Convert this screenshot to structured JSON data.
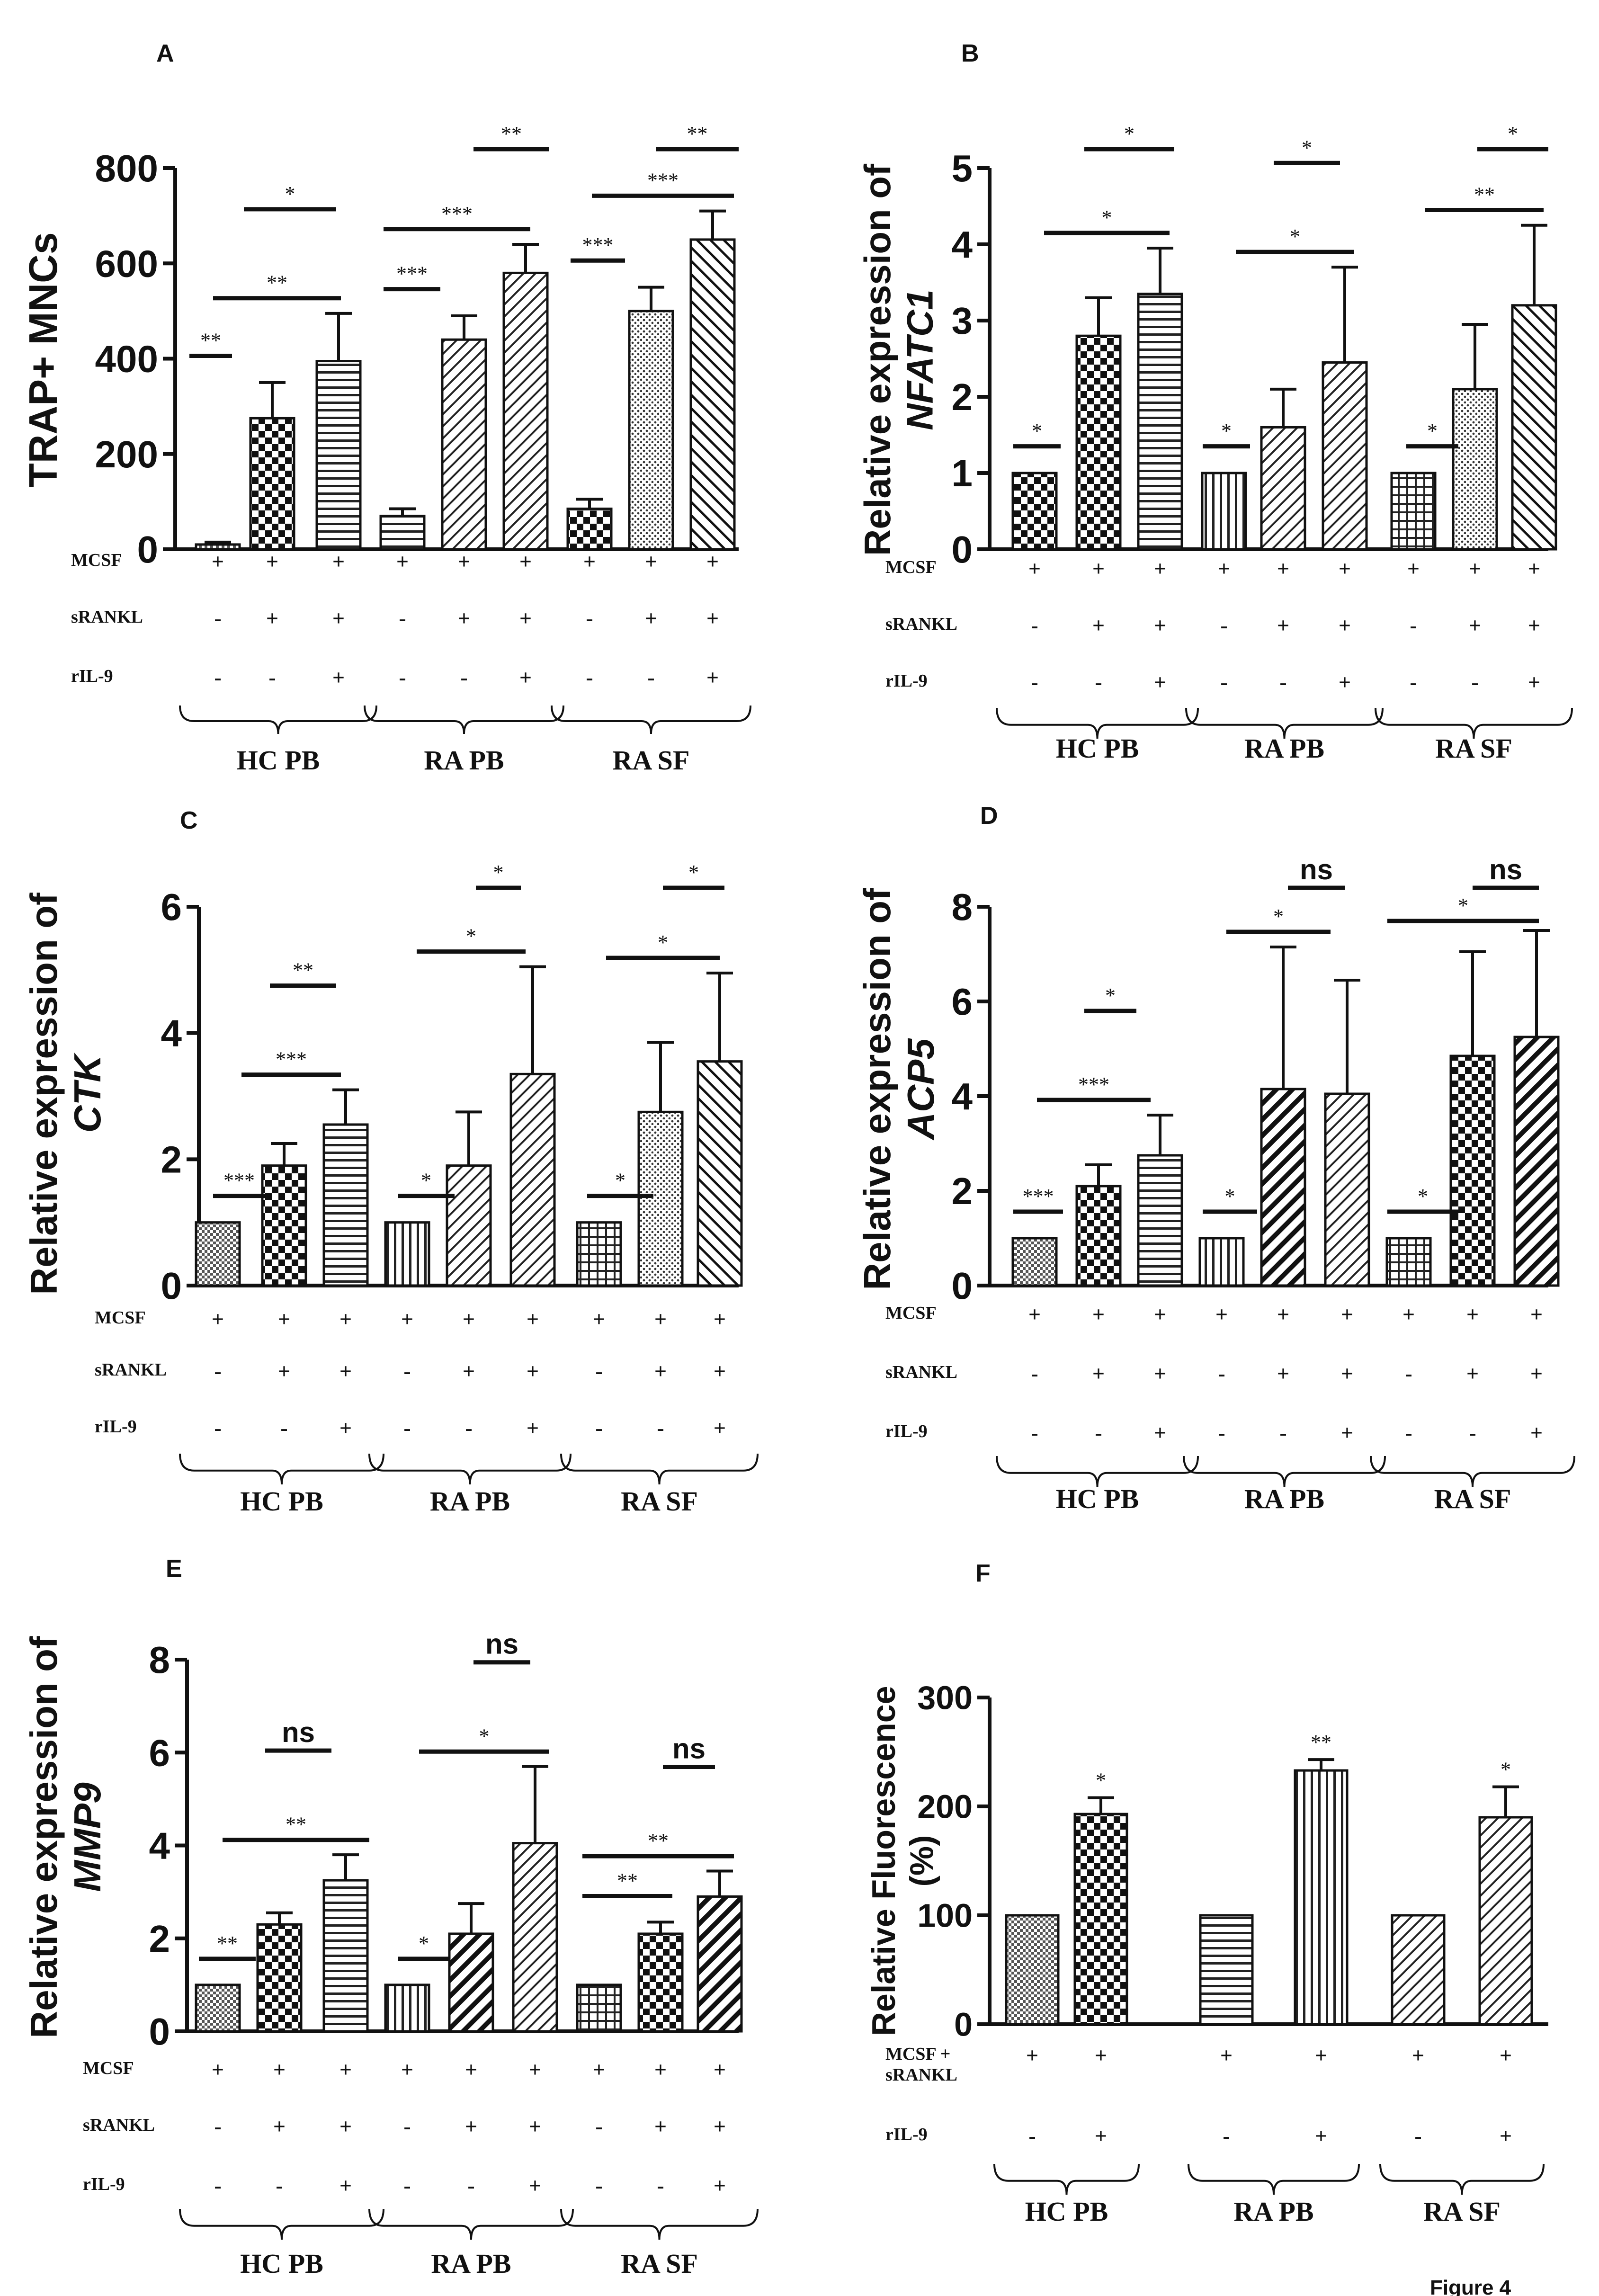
{
  "figure_label": "Figure 4",
  "condition_rows": {
    "mcsf": "MCSF",
    "srankl": "sRANKL",
    "ril9": "rIL-9",
    "mcsf_srankl": [
      "MCSF +",
      "sRANKL"
    ],
    "values_6": {
      "mcsf": [
        "+",
        "+",
        "+"
      ],
      "srankl": [
        "-",
        "+",
        "+"
      ],
      "ril9": [
        "-",
        "-",
        "+"
      ]
    },
    "values_f": {
      "mcsf_srankl": [
        "+",
        "+"
      ],
      "ril9": [
        "-",
        "+"
      ]
    }
  },
  "groups": [
    "HC PB",
    "RA PB",
    "RA SF"
  ],
  "chart_data": [
    {
      "panel": "A",
      "type": "bar",
      "ylabel": [
        "TRAP+ MNCs"
      ],
      "ylim": [
        0,
        800
      ],
      "yticks": [
        "0",
        "200",
        "400",
        "600",
        "800"
      ],
      "groups": [
        "HC PB",
        "RA PB",
        "RA SF"
      ],
      "series": [
        "MCSF",
        "MCSF + sRANKL",
        "MCSF + sRANKL + rIL-9"
      ],
      "values": [
        [
          10,
          275,
          395
        ],
        [
          70,
          440,
          580
        ],
        [
          85,
          500,
          650
        ]
      ],
      "errors": [
        [
          5,
          75,
          100
        ],
        [
          15,
          50,
          60
        ],
        [
          20,
          50,
          60
        ]
      ],
      "significance": [
        {
          "from": [
            0,
            0
          ],
          "to": [
            0,
            1
          ],
          "label": "**"
        },
        {
          "from": [
            0,
            1
          ],
          "to": [
            0,
            2
          ],
          "label": "*"
        },
        {
          "from": [
            0,
            0
          ],
          "to": [
            0,
            2
          ],
          "label": "**"
        },
        {
          "from": [
            1,
            0
          ],
          "to": [
            1,
            1
          ],
          "label": "***"
        },
        {
          "from": [
            1,
            1
          ],
          "to": [
            1,
            2
          ],
          "label": "**"
        },
        {
          "from": [
            1,
            0
          ],
          "to": [
            1,
            2
          ],
          "label": "***"
        },
        {
          "from": [
            2,
            0
          ],
          "to": [
            2,
            1
          ],
          "label": "***"
        },
        {
          "from": [
            2,
            1
          ],
          "to": [
            2,
            2
          ],
          "label": "**"
        },
        {
          "from": [
            2,
            0
          ],
          "to": [
            2,
            2
          ],
          "label": "***"
        }
      ]
    },
    {
      "panel": "B",
      "type": "bar",
      "ylabel": [
        "Relative expression of",
        "NFATC1"
      ],
      "ylim": [
        0,
        5
      ],
      "yticks": [
        "0",
        "1",
        "2",
        "3",
        "4",
        "5"
      ],
      "groups": [
        "HC PB",
        "RA PB",
        "RA SF"
      ],
      "series": [
        "MCSF",
        "MCSF + sRANKL",
        "MCSF + sRANKL + rIL-9"
      ],
      "values": [
        [
          1,
          2.8,
          3.35
        ],
        [
          1,
          1.6,
          2.45
        ],
        [
          1,
          2.1,
          3.2
        ]
      ],
      "errors": [
        [
          0,
          0.5,
          0.6
        ],
        [
          0,
          0.5,
          1.25
        ],
        [
          0,
          0.85,
          1.05
        ]
      ],
      "significance": [
        {
          "from": [
            0,
            0
          ],
          "to": [
            0,
            0
          ],
          "label": "*"
        },
        {
          "from": [
            0,
            1
          ],
          "to": [
            0,
            2
          ],
          "label": "*"
        },
        {
          "from": [
            0,
            0
          ],
          "to": [
            0,
            2
          ],
          "label": "*"
        },
        {
          "from": [
            1,
            0
          ],
          "to": [
            1,
            0
          ],
          "label": "*"
        },
        {
          "from": [
            1,
            1
          ],
          "to": [
            1,
            2
          ],
          "label": "*"
        },
        {
          "from": [
            1,
            0
          ],
          "to": [
            1,
            2
          ],
          "label": "*"
        },
        {
          "from": [
            2,
            0
          ],
          "to": [
            2,
            0
          ],
          "label": "*"
        },
        {
          "from": [
            2,
            1
          ],
          "to": [
            2,
            2
          ],
          "label": "*"
        },
        {
          "from": [
            2,
            0
          ],
          "to": [
            2,
            2
          ],
          "label": "**"
        }
      ]
    },
    {
      "panel": "C",
      "type": "bar",
      "ylabel": [
        "Relative expression of",
        "CTK"
      ],
      "ylim": [
        0,
        6
      ],
      "yticks": [
        "0",
        "2",
        "4",
        "6"
      ],
      "groups": [
        "HC PB",
        "RA PB",
        "RA SF"
      ],
      "series": [
        "MCSF",
        "MCSF + sRANKL",
        "MCSF + sRANKL + rIL-9"
      ],
      "values": [
        [
          1,
          1.9,
          2.55
        ],
        [
          1,
          1.9,
          3.35
        ],
        [
          1,
          2.75,
          3.55
        ]
      ],
      "errors": [
        [
          0,
          0.35,
          0.55
        ],
        [
          0,
          0.85,
          1.7
        ],
        [
          0,
          1.1,
          1.4
        ]
      ],
      "significance": [
        {
          "from": [
            0,
            0
          ],
          "to": [
            0,
            0
          ],
          "label": "***"
        },
        {
          "from": [
            0,
            1
          ],
          "to": [
            0,
            2
          ],
          "label": "**"
        },
        {
          "from": [
            0,
            0
          ],
          "to": [
            0,
            2
          ],
          "label": "***"
        },
        {
          "from": [
            1,
            0
          ],
          "to": [
            1,
            0
          ],
          "label": "*"
        },
        {
          "from": [
            1,
            1
          ],
          "to": [
            1,
            2
          ],
          "label": "*"
        },
        {
          "from": [
            1,
            0
          ],
          "to": [
            1,
            2
          ],
          "label": "*"
        },
        {
          "from": [
            2,
            0
          ],
          "to": [
            2,
            0
          ],
          "label": "*"
        },
        {
          "from": [
            2,
            1
          ],
          "to": [
            2,
            2
          ],
          "label": "*"
        },
        {
          "from": [
            2,
            0
          ],
          "to": [
            2,
            2
          ],
          "label": "*"
        }
      ]
    },
    {
      "panel": "D",
      "type": "bar",
      "ylabel": [
        "Relative expression of",
        "ACP5"
      ],
      "ylim": [
        0,
        8
      ],
      "yticks": [
        "0",
        "2",
        "4",
        "6",
        "8"
      ],
      "groups": [
        "HC PB",
        "RA PB",
        "RA SF"
      ],
      "series": [
        "MCSF",
        "MCSF + sRANKL",
        "MCSF + sRANKL + rIL-9"
      ],
      "values": [
        [
          1,
          2.1,
          2.75
        ],
        [
          1,
          4.15,
          4.05
        ],
        [
          1,
          4.85,
          5.25
        ]
      ],
      "errors": [
        [
          0,
          0.45,
          0.85
        ],
        [
          0,
          3.0,
          2.4
        ],
        [
          0,
          2.2,
          2.25
        ]
      ],
      "significance": [
        {
          "from": [
            0,
            0
          ],
          "to": [
            0,
            0
          ],
          "label": "***"
        },
        {
          "from": [
            0,
            1
          ],
          "to": [
            0,
            2
          ],
          "label": "*"
        },
        {
          "from": [
            0,
            0
          ],
          "to": [
            0,
            2
          ],
          "label": "***"
        },
        {
          "from": [
            1,
            0
          ],
          "to": [
            1,
            0
          ],
          "label": "*"
        },
        {
          "from": [
            1,
            1
          ],
          "to": [
            1,
            2
          ],
          "label": "ns"
        },
        {
          "from": [
            1,
            0
          ],
          "to": [
            1,
            2
          ],
          "label": "*"
        },
        {
          "from": [
            2,
            0
          ],
          "to": [
            2,
            0
          ],
          "label": "*"
        },
        {
          "from": [
            2,
            1
          ],
          "to": [
            2,
            2
          ],
          "label": "ns"
        },
        {
          "from": [
            2,
            0
          ],
          "to": [
            2,
            2
          ],
          "label": "*"
        }
      ]
    },
    {
      "panel": "E",
      "type": "bar",
      "ylabel": [
        "Relative expression of",
        "MMP9"
      ],
      "ylim": [
        0,
        8
      ],
      "yticks": [
        "0",
        "2",
        "4",
        "6",
        "8"
      ],
      "groups": [
        "HC PB",
        "RA PB",
        "RA SF"
      ],
      "series": [
        "MCSF",
        "MCSF + sRANKL",
        "MCSF + sRANKL + rIL-9"
      ],
      "values": [
        [
          1,
          2.3,
          3.25
        ],
        [
          1,
          2.1,
          4.05
        ],
        [
          1,
          2.1,
          2.9
        ]
      ],
      "errors": [
        [
          0,
          0.25,
          0.55
        ],
        [
          0,
          0.65,
          1.65
        ],
        [
          0,
          0.25,
          0.55
        ]
      ],
      "significance": [
        {
          "from": [
            0,
            0
          ],
          "to": [
            0,
            0
          ],
          "label": "**"
        },
        {
          "from": [
            0,
            1
          ],
          "to": [
            0,
            2
          ],
          "label": "ns"
        },
        {
          "from": [
            0,
            0
          ],
          "to": [
            0,
            2
          ],
          "label": "**"
        },
        {
          "from": [
            1,
            0
          ],
          "to": [
            1,
            0
          ],
          "label": "*"
        },
        {
          "from": [
            1,
            1
          ],
          "to": [
            1,
            2
          ],
          "label": "ns"
        },
        {
          "from": [
            1,
            0
          ],
          "to": [
            1,
            2
          ],
          "label": "*"
        },
        {
          "from": [
            2,
            0
          ],
          "to": [
            2,
            1
          ],
          "label": "**"
        },
        {
          "from": [
            2,
            1
          ],
          "to": [
            2,
            2
          ],
          "label": "ns"
        },
        {
          "from": [
            2,
            0
          ],
          "to": [
            2,
            2
          ],
          "label": "**"
        }
      ]
    },
    {
      "panel": "F",
      "type": "bar",
      "ylabel": [
        "Relative Fluorescence",
        "(%)"
      ],
      "ylim": [
        0,
        300
      ],
      "yticks": [
        "0",
        "100",
        "200",
        "300"
      ],
      "groups": [
        "HC PB",
        "RA PB",
        "RA SF"
      ],
      "series": [
        "MCSF + sRANKL",
        "MCSF + sRANKL + rIL-9"
      ],
      "values": [
        [
          100,
          193
        ],
        [
          100,
          233
        ],
        [
          100,
          190
        ]
      ],
      "errors": [
        [
          0,
          15
        ],
        [
          0,
          10
        ],
        [
          0,
          28
        ]
      ],
      "point_labels": [
        "",
        "*",
        "",
        "**",
        "",
        "*"
      ]
    }
  ]
}
